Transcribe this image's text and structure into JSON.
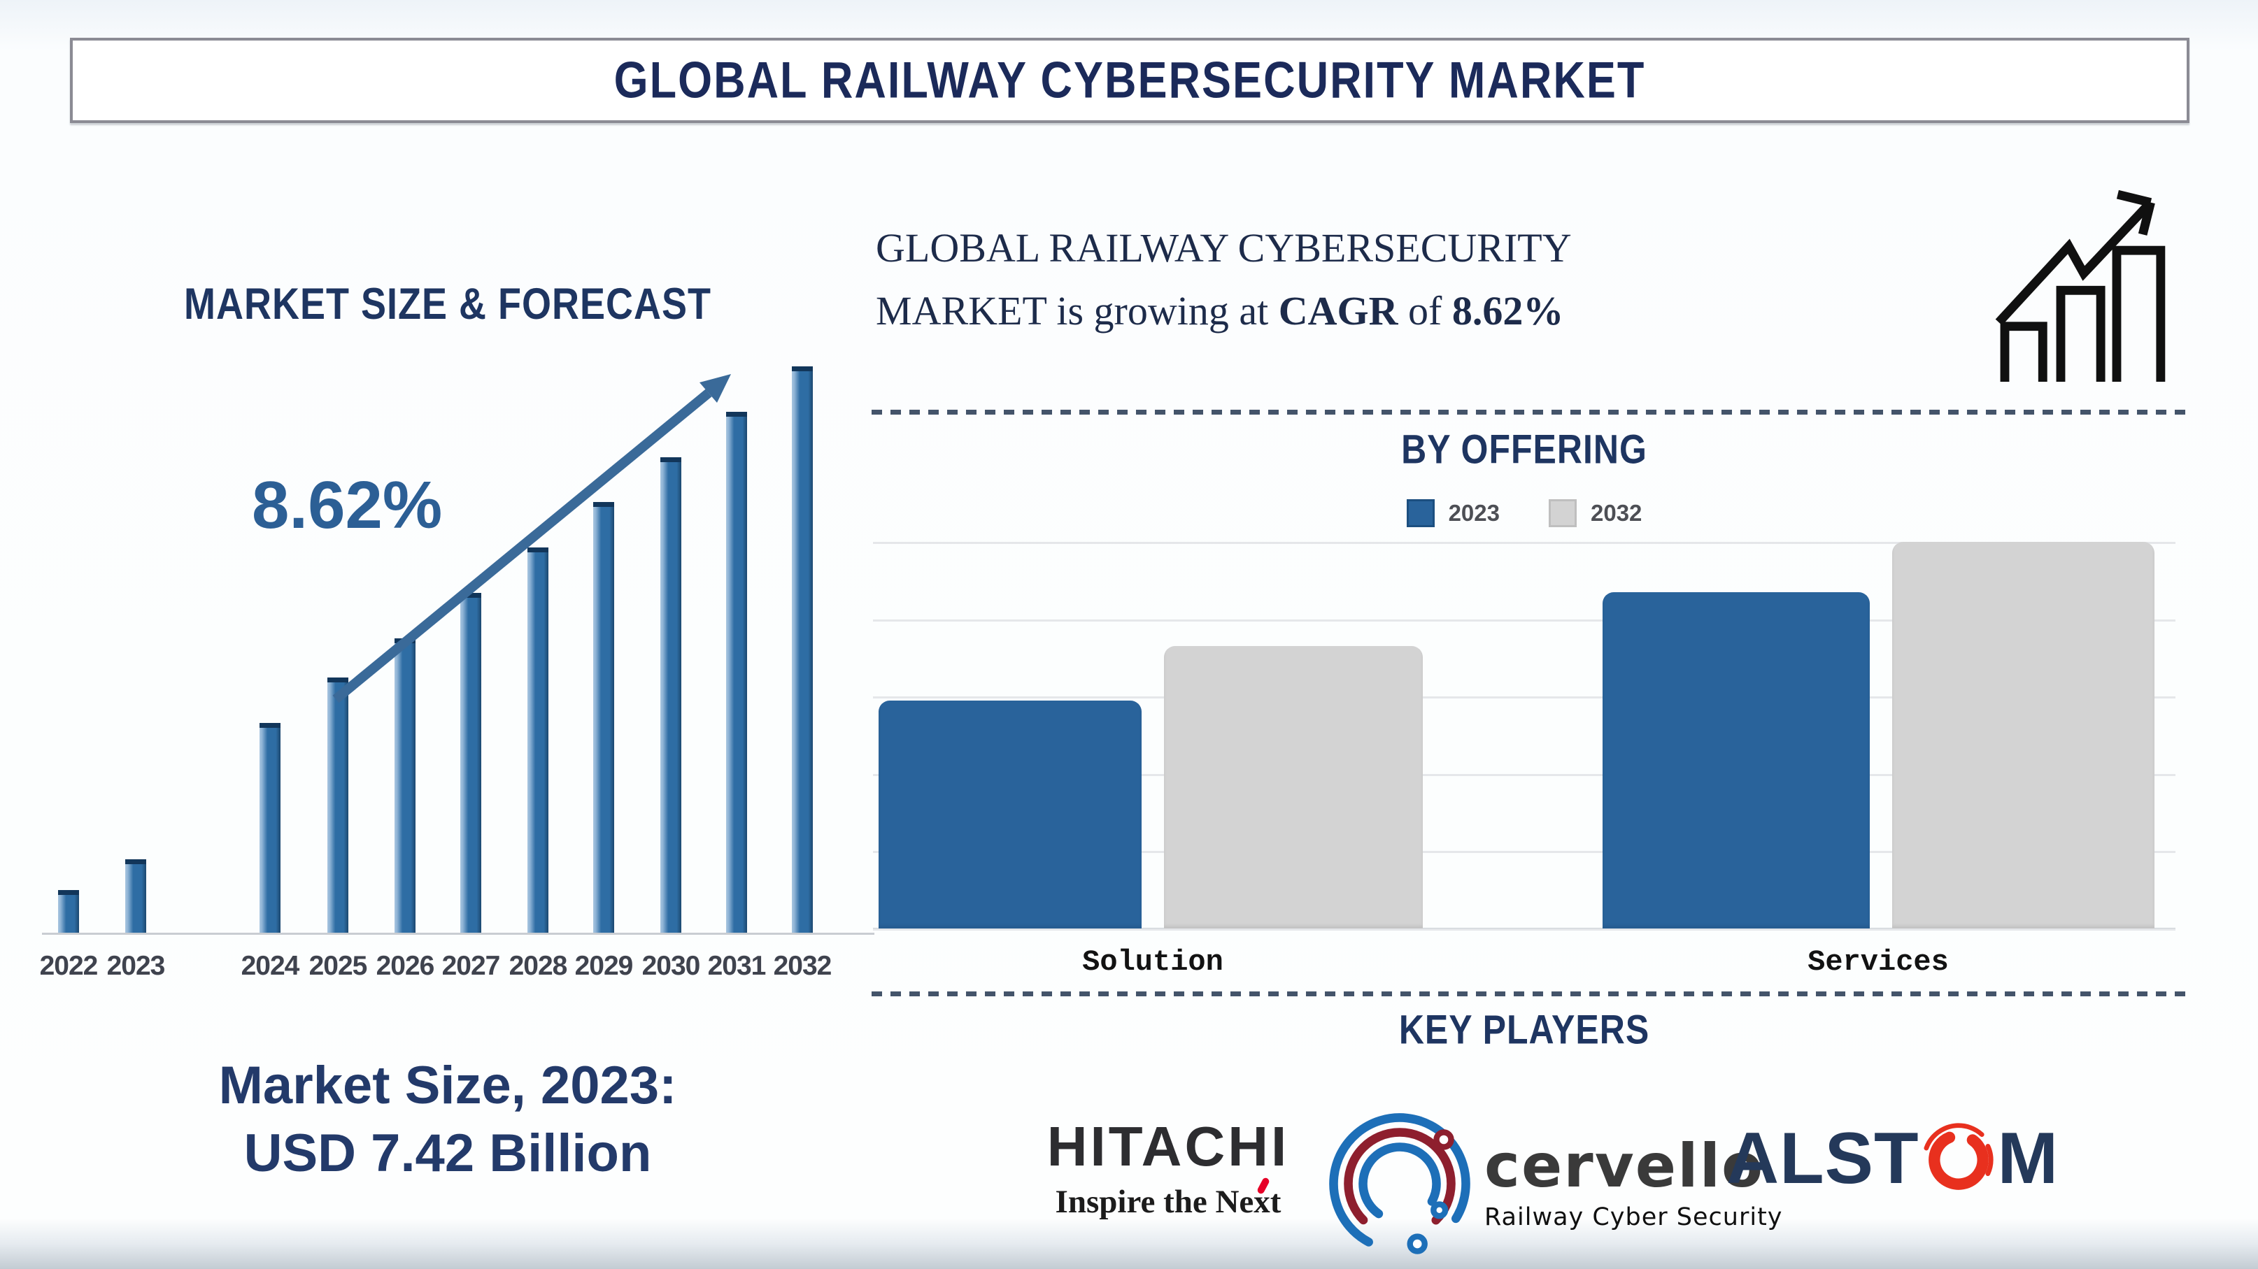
{
  "banner": {
    "title": "GLOBAL RAILWAY CYBERSECURITY MARKET"
  },
  "market_size": {
    "line1": "Market Size, 2023:",
    "line2": "USD 7.42 Billion"
  },
  "growth_statement": {
    "line1": "GLOBAL RAILWAY CYBERSECURITY",
    "line2_prefix": "MARKET is growing at ",
    "line2_cagr": "CAGR",
    "line2_mid": " of ",
    "line2_value": "8.62%"
  },
  "key_players_title": "KEY PLAYERS",
  "key_players": {
    "hitachi": {
      "name": "HITACHI",
      "tagline": "Inspire the Next"
    },
    "cervello": {
      "name": "cervello",
      "tagline": "Railway Cyber Security"
    },
    "alstom": {
      "name": "ALSTOM",
      "name_before_o": "ALST",
      "name_after_o": "M"
    }
  },
  "icons": {
    "growth": "growth-chart-icon",
    "trend": "trend-arrow-icon",
    "cervello_mark": "cervello-arcs-icon",
    "alstom_o": "alstom-o-swirl-icon",
    "hitachi_accent": "red-accent-mark-icon"
  },
  "colors": {
    "heading_navy": "#1e3561",
    "banner_navy": "#1b2a5a",
    "bar_blue": "#2e6da4",
    "bar_gray": "#d3d3d3",
    "dash_line": "#44546a",
    "arrow_blue": "#3a6a99",
    "cagr_text_blue": "#2c5f95",
    "hitachi_red": "#e60027",
    "cervello_blue": "#1d6fb8",
    "cervello_maroon": "#8e1f2e",
    "alstom_red": "#e8301e",
    "alstom_navy": "#24395a"
  },
  "chart_data": [
    {
      "id": "market_size_forecast",
      "type": "bar",
      "title": "MARKET SIZE & FORECAST",
      "categories": [
        "2022",
        "2023",
        "2024",
        "2025",
        "2026",
        "2027",
        "2028",
        "2029",
        "2030",
        "2031",
        "2032"
      ],
      "values": [
        7.5,
        13,
        37,
        45,
        52,
        60,
        68,
        76,
        84,
        92,
        100
      ],
      "unit": "relative bar height, % of 2032 bar (no value axis shown)",
      "annotation": "8.62%",
      "bar_color": "#2e6da4",
      "grid": false,
      "xlabel": "",
      "ylabel": ""
    },
    {
      "id": "by_offering",
      "type": "bar",
      "title": "BY OFFERING",
      "categories": [
        "Solution",
        "Services"
      ],
      "series": [
        {
          "name": "2023",
          "color": "#29639b",
          "values": [
            59,
            87
          ]
        },
        {
          "name": "2032",
          "color": "#d3d3d3",
          "values": [
            73,
            100
          ]
        }
      ],
      "unit": "relative bar height, % of tallest bar (no value axis shown)",
      "grid": true,
      "legend_position": "top",
      "xlabel": "",
      "ylabel": ""
    }
  ]
}
